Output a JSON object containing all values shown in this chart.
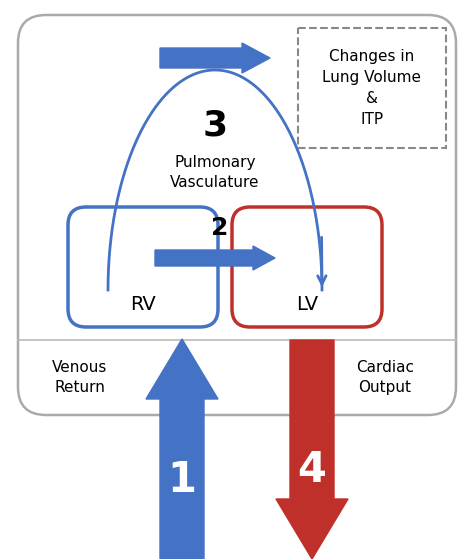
{
  "bg_color": "#ffffff",
  "blue_color": "#4472c4",
  "red_color": "#c0302a",
  "gray_box_color": "#999999",
  "rv_label": "RV",
  "lv_label": "LV",
  "label1": "1",
  "label2": "2",
  "label3": "3",
  "label4": "4",
  "pulm_vasc_label": "Pulmonary\nVasculature",
  "venous_return_label": "Venous\nReturn",
  "cardiac_output_label": "Cardiac\nOutput",
  "changes_label": "Changes in\nLung Volume\n&\nITP"
}
